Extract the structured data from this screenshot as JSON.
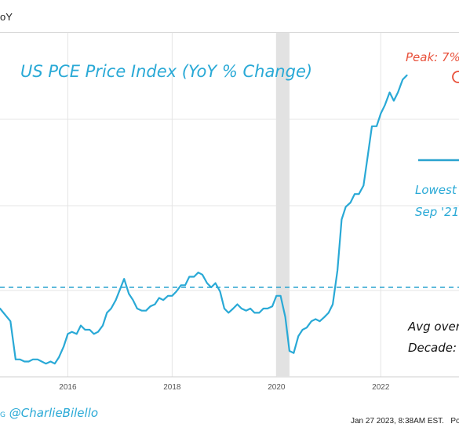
{
  "header": {
    "tab_label": "oY"
  },
  "footer": {
    "handle": "@CharlieBilello",
    "brand_fragment": "G",
    "timestamp": "Jan 27 2023, 8:38AM EST.",
    "powered": "Power"
  },
  "colors": {
    "line": "#29a9d6",
    "recession": "#e2e2e2",
    "grid": "#e4e4e4",
    "peak": "#e8503a",
    "hline": "#2aa3cf"
  },
  "chart_data": {
    "type": "line",
    "title": "US PCE Price Index (YoY % Change)",
    "x_tick_labels": [
      "2016",
      "2018",
      "2020",
      "2022"
    ],
    "x_ticks": [
      2016,
      2018,
      2020,
      2022
    ],
    "x_range": [
      2014.7,
      2023.5
    ],
    "recession": [
      2020.0,
      2020.25
    ],
    "reference_line_y": 2.0,
    "annotations": {
      "peak": "Peak: 7%",
      "lowest": [
        "Lowest",
        "Sep '21"
      ],
      "avg": [
        "Avg over",
        "Decade: "
      ]
    },
    "series": [
      {
        "x": [
          2014.7,
          2014.9,
          2015.0,
          2015.08,
          2015.17,
          2015.25,
          2015.33,
          2015.42,
          2015.5,
          2015.58,
          2015.67,
          2015.75,
          2015.83,
          2015.92,
          2016.0,
          2016.08,
          2016.17,
          2016.25,
          2016.33,
          2016.42,
          2016.5,
          2016.58,
          2016.67,
          2016.75,
          2016.83,
          2016.92,
          2017.0,
          2017.08,
          2017.17,
          2017.25,
          2017.33,
          2017.42,
          2017.5,
          2017.58,
          2017.67,
          2017.75,
          2017.83,
          2017.92,
          2018.0,
          2018.08,
          2018.17,
          2018.25,
          2018.33,
          2018.42,
          2018.5,
          2018.58,
          2018.67,
          2018.75,
          2018.83,
          2018.92,
          2019.0,
          2019.08,
          2019.17,
          2019.25,
          2019.33,
          2019.42,
          2019.5,
          2019.58,
          2019.67,
          2019.75,
          2019.83,
          2019.92,
          2020.0,
          2020.08,
          2020.17,
          2020.25,
          2020.33,
          2020.42,
          2020.5,
          2020.58,
          2020.67,
          2020.75,
          2020.83,
          2020.92,
          2021.0,
          2021.08,
          2021.17,
          2021.25,
          2021.33,
          2021.42,
          2021.5,
          2021.58,
          2021.67,
          2021.75,
          2021.83,
          2021.92,
          2022.0,
          2022.08,
          2022.17,
          2022.25,
          2022.33,
          2022.42,
          2022.5
        ],
        "y": [
          1.5,
          1.2,
          0.3,
          0.3,
          0.25,
          0.25,
          0.3,
          0.3,
          0.25,
          0.2,
          0.25,
          0.2,
          0.35,
          0.6,
          0.9,
          0.95,
          0.9,
          1.1,
          1.0,
          1.0,
          0.9,
          0.95,
          1.1,
          1.4,
          1.5,
          1.7,
          1.95,
          2.2,
          1.85,
          1.7,
          1.5,
          1.45,
          1.45,
          1.55,
          1.6,
          1.75,
          1.7,
          1.8,
          1.8,
          1.9,
          2.05,
          2.05,
          2.25,
          2.25,
          2.35,
          2.3,
          2.1,
          2.0,
          2.1,
          1.9,
          1.5,
          1.4,
          1.5,
          1.6,
          1.5,
          1.45,
          1.5,
          1.4,
          1.4,
          1.5,
          1.5,
          1.55,
          1.8,
          1.8,
          1.3,
          0.5,
          0.45,
          0.85,
          1.0,
          1.05,
          1.2,
          1.25,
          1.2,
          1.3,
          1.4,
          1.6,
          2.4,
          3.6,
          3.9,
          4.0,
          4.2,
          4.2,
          4.4,
          5.1,
          5.8,
          5.8,
          6.1,
          6.3,
          6.6,
          6.4,
          6.6,
          6.9,
          7.0
        ]
      }
    ]
  }
}
